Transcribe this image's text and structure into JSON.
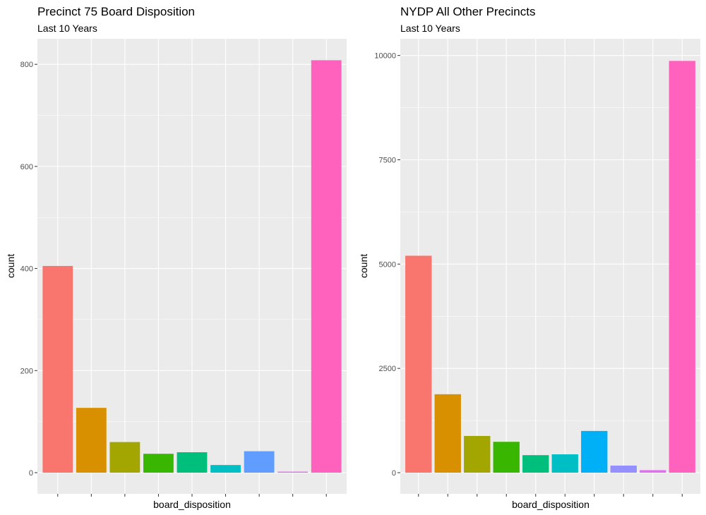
{
  "chart_data": [
    {
      "type": "bar",
      "title": "Precinct 75 Board Disposition",
      "subtitle": "Last 10 Years",
      "xlabel": "board_disposition",
      "ylabel": "count",
      "ylim": [
        0,
        850
      ],
      "y_ticks": [
        "0",
        "200",
        "400",
        "600",
        "800"
      ],
      "values": [
        405,
        127,
        60,
        37,
        40,
        15,
        42,
        2,
        808
      ],
      "colors": [
        "#F8766D",
        "#D89000",
        "#A3A500",
        "#39B600",
        "#00BF7D",
        "#00BFC4",
        "#619CFF",
        "#E76BF3",
        "#FF62BC"
      ],
      "x_tick_labels_shown": false,
      "grid": true,
      "legend": "none"
    },
    {
      "type": "bar",
      "title": "NYDP All Other Precincts",
      "subtitle": "Last 10 Years",
      "xlabel": "board_disposition",
      "ylabel": "count",
      "ylim": [
        0,
        10400
      ],
      "y_ticks": [
        "0",
        "2500",
        "5000",
        "7500",
        "10000"
      ],
      "values": [
        5200,
        1880,
        880,
        740,
        420,
        440,
        1000,
        170,
        60,
        9870
      ],
      "colors": [
        "#F8766D",
        "#D89000",
        "#A3A500",
        "#39B600",
        "#00BF7D",
        "#00BFC4",
        "#00B0F6",
        "#9590FF",
        "#E76BF3",
        "#FF62BC"
      ],
      "x_tick_labels_shown": false,
      "grid": true,
      "legend": "none"
    }
  ]
}
